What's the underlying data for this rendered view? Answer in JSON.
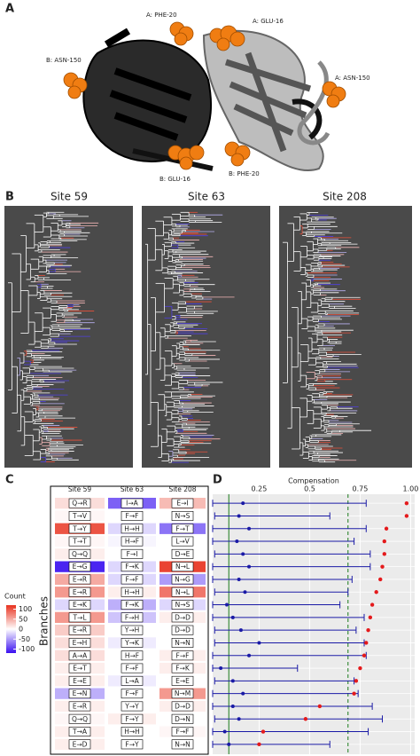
{
  "panel_labels": [
    "A",
    "B",
    "C",
    "D"
  ],
  "structure_labels": [
    "A: PHE-20",
    "A: GLU-16",
    "B: ASN-150",
    "A: ASN-150",
    "B: GLU-16",
    "B: PHE-20"
  ],
  "tree_titles": [
    "Site 59",
    "Site 63",
    "Site 208"
  ],
  "chart_data": [
    {
      "type": "heatmap",
      "y_label": "Branches",
      "legend_title": "Count",
      "columns": [
        "Site 59",
        "Site 63",
        "Site 208"
      ],
      "labels": [
        [
          "Q→R",
          "I→A",
          "E→I"
        ],
        [
          "T→V",
          "F→F",
          "N→S"
        ],
        [
          "T→Y",
          "H→H",
          "F→T"
        ],
        [
          "T→T",
          "H→F",
          "L→V"
        ],
        [
          "Q→Q",
          "F→I",
          "D→E"
        ],
        [
          "E→G",
          "F→K",
          "N→L"
        ],
        [
          "E→R",
          "F→F",
          "N→G"
        ],
        [
          "E→R",
          "H→H",
          "N→L"
        ],
        [
          "E→K",
          "F→K",
          "N→S"
        ],
        [
          "T→L",
          "F→H",
          "D→D"
        ],
        [
          "E→R",
          "Y→H",
          "D→D"
        ],
        [
          "E→H",
          "Y→K",
          "N→N"
        ],
        [
          "A→A",
          "H→F",
          "F→F"
        ],
        [
          "E→T",
          "F→F",
          "F→K"
        ],
        [
          "E→E",
          "L→A",
          "E→E"
        ],
        [
          "E→N",
          "F→F",
          "N→M"
        ],
        [
          "E→R",
          "Y→Y",
          "D→D"
        ],
        [
          "Q→Q",
          "F→Y",
          "D→N"
        ],
        [
          "T→A",
          "H→H",
          "F→F"
        ],
        [
          "E→D",
          "F→Y",
          "N→N"
        ]
      ],
      "values": [
        [
          20,
          -80,
          40
        ],
        [
          5,
          0,
          0
        ],
        [
          100,
          -20,
          -70
        ],
        [
          5,
          -5,
          0
        ],
        [
          10,
          0,
          0
        ],
        [
          -110,
          -20,
          110
        ],
        [
          50,
          -20,
          -50
        ],
        [
          60,
          10,
          80
        ],
        [
          -20,
          -40,
          -20
        ],
        [
          60,
          -30,
          10
        ],
        [
          30,
          0,
          0
        ],
        [
          20,
          -10,
          0
        ],
        [
          20,
          0,
          10
        ],
        [
          10,
          0,
          10
        ],
        [
          10,
          -10,
          0
        ],
        [
          -40,
          0,
          60
        ],
        [
          10,
          0,
          10
        ],
        [
          5,
          10,
          0
        ],
        [
          10,
          0,
          5
        ],
        [
          10,
          0,
          0
        ]
      ],
      "clim": [
        -120,
        120
      ],
      "colorbar_ticks": [
        100,
        50,
        0,
        -50,
        -100
      ],
      "low_color": "#3a10f0",
      "mid_color": "#ffffff",
      "high_color": "#e8321f"
    },
    {
      "type": "dot_errorbar",
      "x_label": "Compensation",
      "xlim": [
        0.02,
        1.02
      ],
      "xticks": [
        0.25,
        0.5,
        0.75,
        {
          "value": 1.0,
          "label": "1.00"
        }
      ],
      "xtick_labels": [
        "0.25",
        "0.50",
        "0.75"
      ],
      "points": {
        "color": "#e41a1c",
        "values": [
          0.98,
          0.98,
          0.88,
          0.87,
          0.87,
          0.86,
          0.85,
          0.83,
          0.81,
          0.8,
          0.79,
          0.78,
          0.77,
          0.75,
          0.73,
          0.72,
          0.55,
          0.48,
          0.27,
          0.25
        ]
      },
      "estimates": {
        "color": "#1a1aa6",
        "values": [
          0.17,
          0.15,
          0.2,
          0.14,
          0.17,
          0.2,
          0.15,
          0.18,
          0.09,
          0.12,
          0.16,
          0.25,
          0.2,
          0.06,
          0.12,
          0.17,
          0.12,
          0.15,
          0.08,
          0.1
        ],
        "low": [
          0.02,
          0.03,
          0.02,
          0.02,
          0.03,
          0.02,
          0.02,
          0.03,
          0.02,
          0.02,
          0.03,
          0.03,
          0.02,
          0.02,
          0.03,
          0.02,
          0.02,
          0.03,
          0.02,
          0.02
        ],
        "high": [
          0.78,
          0.6,
          0.78,
          0.72,
          0.8,
          0.8,
          0.71,
          0.69,
          0.65,
          0.77,
          0.73,
          0.77,
          0.78,
          0.44,
          0.72,
          0.74,
          0.81,
          0.86,
          0.79,
          0.6
        ]
      },
      "vlines": [
        {
          "value": 0.1,
          "color": "#1b7a1b",
          "dash": false
        },
        {
          "value": 0.69,
          "color": "#1b7a1b",
          "dash": true
        }
      ],
      "grid": true
    }
  ]
}
